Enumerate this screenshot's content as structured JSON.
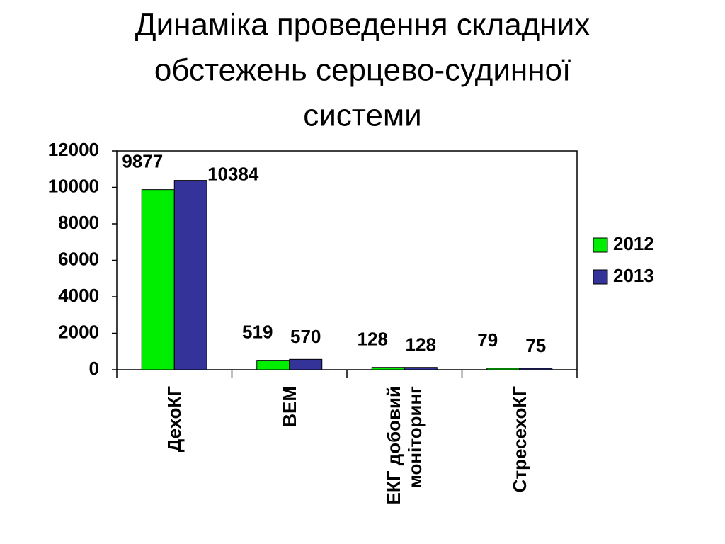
{
  "chart_data": {
    "type": "bar",
    "title": [
      "Динаміка проведення складних",
      "обстежень серцево-судинної",
      "системи"
    ],
    "categories": [
      "ДехоКГ",
      "ВЕМ",
      "ЕКГ добовий моніторинг",
      "СтресехоКГ"
    ],
    "series": [
      {
        "name": "2012",
        "color": "#00ee00",
        "values": [
          9877,
          519,
          128,
          79
        ]
      },
      {
        "name": "2013",
        "color": "#333399",
        "values": [
          10384,
          570,
          128,
          75
        ]
      }
    ],
    "ylim": [
      0,
      12000
    ],
    "yticks": [
      0,
      2000,
      4000,
      6000,
      8000,
      10000,
      12000
    ],
    "legend": "right",
    "grid": false
  }
}
